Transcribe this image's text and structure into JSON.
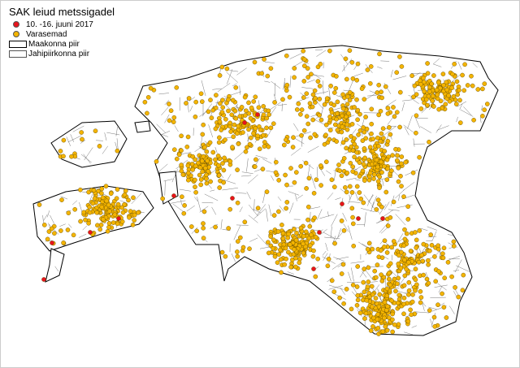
{
  "legend": {
    "title": "SAK leiud metssigadel",
    "items": [
      {
        "label": "10. -16. juuni 2017",
        "symbol": "red-dot",
        "color": "#e8141c"
      },
      {
        "label": "Varasemad",
        "symbol": "orange-dot",
        "color": "#f4b400"
      },
      {
        "label": "Maakonna piir",
        "symbol": "thick-outline-box"
      },
      {
        "label": "Jahipiirkonna piir",
        "symbol": "thin-outline-box"
      }
    ]
  },
  "colors": {
    "recent": "#e8141c",
    "earlier": "#f4b400",
    "border": "#000000"
  }
}
